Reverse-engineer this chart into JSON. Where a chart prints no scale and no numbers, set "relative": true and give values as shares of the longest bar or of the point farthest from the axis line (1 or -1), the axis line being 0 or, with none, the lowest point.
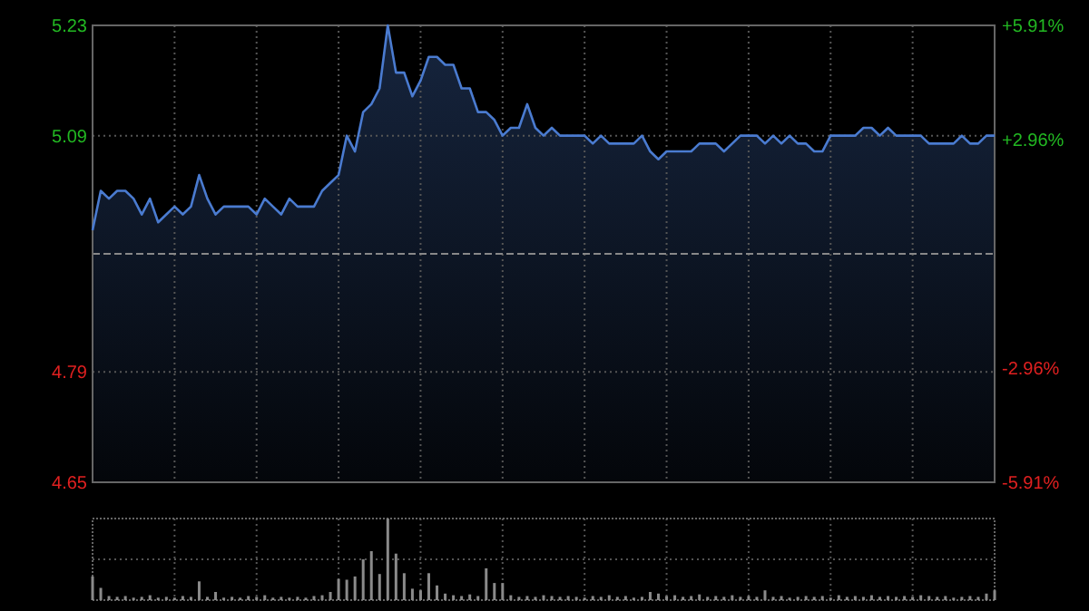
{
  "chart_data": [
    {
      "type": "area",
      "color": "#4a7bd0",
      "categories": [
        null,
        null,
        null,
        null,
        null,
        null,
        null,
        null,
        null,
        null,
        null,
        null,
        null,
        null,
        null,
        null,
        null,
        null,
        null,
        null,
        null,
        null,
        null,
        null,
        null,
        null,
        null,
        null,
        null,
        null,
        null,
        null,
        null,
        null,
        null,
        null,
        null,
        null,
        null,
        null,
        null,
        null,
        null,
        null,
        null,
        null,
        null,
        null,
        null,
        null,
        null,
        null,
        null,
        null,
        null,
        null,
        null,
        null,
        null,
        null,
        null,
        null,
        null,
        null,
        null,
        null,
        null,
        null,
        null,
        null,
        null,
        null,
        null,
        null,
        null,
        null,
        null,
        null,
        null,
        null,
        null,
        null,
        null,
        null,
        null,
        null,
        null,
        null,
        null,
        null,
        null,
        null,
        null,
        null,
        null,
        null,
        null,
        null,
        null,
        null,
        null,
        null,
        null,
        null,
        null,
        null,
        null,
        null,
        null,
        null,
        null
      ],
      "values": [
        4.97,
        5.02,
        5.01,
        5.02,
        5.02,
        5.01,
        4.99,
        5.01,
        4.98,
        4.99,
        5.0,
        4.99,
        5.0,
        5.04,
        5.01,
        4.99,
        5.0,
        5.0,
        5.0,
        5.0,
        4.99,
        5.01,
        5.0,
        4.99,
        5.01,
        5.0,
        5.0,
        5.0,
        5.02,
        5.03,
        5.04,
        5.09,
        5.07,
        5.12,
        5.13,
        5.15,
        5.23,
        5.17,
        5.17,
        5.14,
        5.16,
        5.19,
        5.19,
        5.18,
        5.18,
        5.15,
        5.15,
        5.12,
        5.12,
        5.11,
        5.09,
        5.1,
        5.1,
        5.13,
        5.1,
        5.09,
        5.1,
        5.09,
        5.09,
        5.09,
        5.09,
        5.08,
        5.09,
        5.08,
        5.08,
        5.08,
        5.08,
        5.09,
        5.07,
        5.06,
        5.07,
        5.07,
        5.07,
        5.07,
        5.08,
        5.08,
        5.08,
        5.07,
        5.08,
        5.09,
        5.09,
        5.09,
        5.08,
        5.09,
        5.08,
        5.09,
        5.08,
        5.08,
        5.07,
        5.07,
        5.09,
        5.09,
        5.09,
        5.09,
        5.1,
        5.1,
        5.09,
        5.1,
        5.09,
        5.09,
        5.09,
        5.09,
        5.08,
        5.08,
        5.08,
        5.08,
        5.09,
        5.08,
        5.08,
        5.09,
        5.09
      ],
      "ylim": [
        4.65,
        5.23
      ],
      "yticks": [
        4.65,
        4.79,
        5.09,
        5.23
      ],
      "y2lim": [
        -5.91,
        5.91
      ],
      "y2ticks": [
        {
          "value": -5.91,
          "label": "-5.91%"
        },
        {
          "value": -2.96,
          "label": "-2.96%"
        },
        {
          "value": 2.96,
          "label": "+2.96%"
        },
        {
          "value": 5.91,
          "label": "+5.91%"
        }
      ],
      "grid": true,
      "ref_lines": [
        {
          "axis": "y",
          "value": 4.94,
          "line_style": "dashed"
        }
      ]
    },
    {
      "type": "bar",
      "color": "#8a8a8a",
      "relative": true,
      "grid": true,
      "categories": [
        null,
        null,
        null,
        null,
        null,
        null,
        null,
        null,
        null,
        null,
        null,
        null,
        null,
        null,
        null,
        null,
        null,
        null,
        null,
        null,
        null,
        null,
        null,
        null,
        null,
        null,
        null,
        null,
        null,
        null,
        null,
        null,
        null,
        null,
        null,
        null,
        null,
        null,
        null,
        null,
        null,
        null,
        null,
        null,
        null,
        null,
        null,
        null,
        null,
        null,
        null,
        null,
        null,
        null,
        null,
        null,
        null,
        null,
        null,
        null,
        null,
        null,
        null,
        null,
        null,
        null,
        null,
        null,
        null,
        null,
        null,
        null,
        null,
        null,
        null,
        null,
        null,
        null,
        null,
        null,
        null,
        null,
        null,
        null,
        null,
        null,
        null,
        null,
        null,
        null,
        null,
        null,
        null,
        null,
        null,
        null,
        null,
        null,
        null,
        null,
        null,
        null,
        null,
        null,
        null,
        null,
        null,
        null,
        null,
        null,
        null
      ],
      "values": [
        0.29,
        0.15,
        0.05,
        0.04,
        0.05,
        0.03,
        0.04,
        0.06,
        0.03,
        0.04,
        0.03,
        0.05,
        0.04,
        0.23,
        0.04,
        0.1,
        0.03,
        0.04,
        0.03,
        0.05,
        0.04,
        0.06,
        0.03,
        0.04,
        0.03,
        0.04,
        0.03,
        0.05,
        0.06,
        0.1,
        0.26,
        0.25,
        0.29,
        0.5,
        0.6,
        0.32,
        1.0,
        0.57,
        0.33,
        0.14,
        0.12,
        0.33,
        0.18,
        0.08,
        0.06,
        0.05,
        0.07,
        0.05,
        0.39,
        0.21,
        0.21,
        0.06,
        0.04,
        0.05,
        0.04,
        0.06,
        0.05,
        0.04,
        0.05,
        0.04,
        0.03,
        0.05,
        0.04,
        0.06,
        0.04,
        0.05,
        0.03,
        0.04,
        0.1,
        0.08,
        0.05,
        0.06,
        0.04,
        0.05,
        0.07,
        0.04,
        0.05,
        0.04,
        0.06,
        0.04,
        0.05,
        0.04,
        0.12,
        0.04,
        0.05,
        0.03,
        0.04,
        0.05,
        0.04,
        0.05,
        0.03,
        0.06,
        0.04,
        0.05,
        0.04,
        0.06,
        0.04,
        0.05,
        0.04,
        0.05,
        0.04,
        0.06,
        0.05,
        0.04,
        0.05,
        0.03,
        0.04,
        0.05,
        0.04,
        0.08,
        0.12
      ]
    }
  ]
}
